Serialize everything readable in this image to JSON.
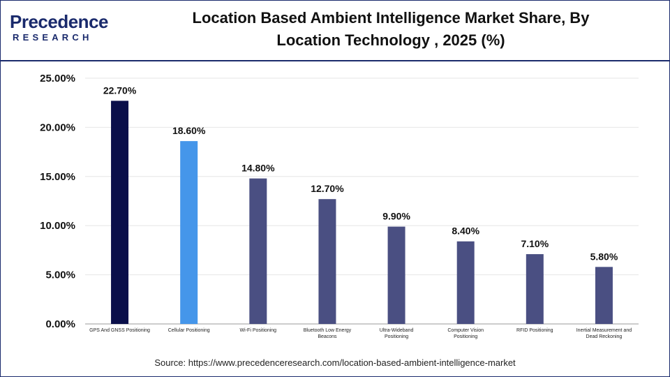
{
  "brand": {
    "logo_main": "Precedence",
    "logo_sub": "RESEARCH"
  },
  "title": "Location Based Ambient Intelligence Market Share, By Location Technology , 2025 (%)",
  "source": "Source: https://www.precedenceresearch.com/location-based-ambient-intelligence-market",
  "chart_data": {
    "type": "bar",
    "title": "Location Based Ambient Intelligence Market Share, By Location Technology , 2025 (%)",
    "categories": [
      "GPS And GNSS Positioning",
      "Cellular Positioning",
      "Wi-Fi Positioning",
      "Bluetooth Low Energy Beacons",
      "Ultra-Wideband Positioning",
      "Computer Vision Positioning",
      "RFID Positioning",
      "Inertial Measurement and Dead Reckoning"
    ],
    "values": [
      22.7,
      18.6,
      14.8,
      12.7,
      9.9,
      8.4,
      7.1,
      5.8
    ],
    "data_labels": [
      "22.70%",
      "18.60%",
      "14.80%",
      "12.70%",
      "9.90%",
      "8.40%",
      "7.10%",
      "5.80%"
    ],
    "colors": [
      "#0a0f4a",
      "#4596ea",
      "#4a4f82",
      "#4a4f82",
      "#4a4f82",
      "#4a4f82",
      "#4a4f82",
      "#4a4f82"
    ],
    "yticks": [
      0,
      5,
      10,
      15,
      20,
      25
    ],
    "ytick_labels": [
      "0.00%",
      "5.00%",
      "10.00%",
      "15.00%",
      "20.00%",
      "25.00%"
    ],
    "ylim": [
      0,
      25
    ],
    "grid": true,
    "xlabel": "",
    "ylabel": ""
  }
}
